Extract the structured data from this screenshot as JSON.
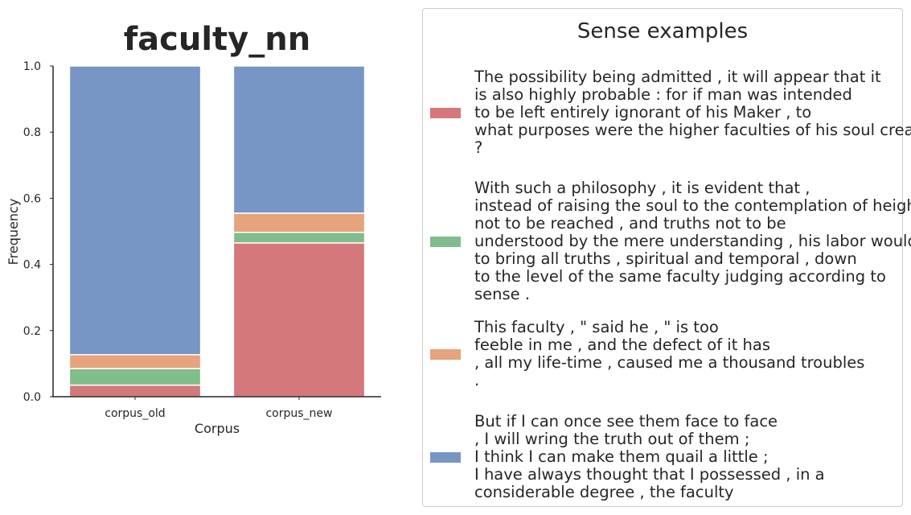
{
  "chart_data": {
    "type": "bar",
    "stacked": true,
    "title": "faculty_nn",
    "xlabel": "Corpus",
    "ylabel": "Frequency",
    "ylim": [
      0,
      1.0
    ],
    "yticks": [
      "0.0",
      "0.2",
      "0.4",
      "0.6",
      "0.8",
      "1.0"
    ],
    "grid": false,
    "legend_placement": "right",
    "categories": [
      "corpus_old",
      "corpus_new"
    ],
    "series": [
      {
        "color": "#d4787b",
        "values": [
          0.035,
          0.465
        ]
      },
      {
        "color": "#80bd8b",
        "values": [
          0.05,
          0.032
        ]
      },
      {
        "color": "#e6a37c",
        "values": [
          0.042,
          0.058
        ]
      },
      {
        "color": "#7896c5",
        "values": [
          0.873,
          0.445
        ]
      }
    ]
  },
  "legend": {
    "title": "Sense examples",
    "entries": [
      {
        "color": "#d4787b",
        "text": "The possibility being admitted , it will appear that it\nis also highly probable : for if man was intended\nto be left entirely ignorant of his Maker , to\nwhat purposes were the higher faculties of his soul created\n?"
      },
      {
        "color": "#80bd8b",
        "text": "With such a philosophy , it is evident that ,\ninstead of raising the soul to the contemplation of heights\nnot to be reached , and truths not to be\nunderstood by the mere understanding , his labor would be\nto bring all truths , spiritual and temporal , down\nto the level of the same faculty judging according to\nsense ."
      },
      {
        "color": "#e6a37c",
        "text": "This faculty , \" said he , \" is too\nfeeble in me , and the defect of it has\n, all my life-time , caused me a thousand troubles\n."
      },
      {
        "color": "#7896c5",
        "text": "But if I can once see them face to face\n, I will wring the truth out of them ;\nI think I can make them quail a little ;\nI have always thought that I possessed , in a\nconsiderable degree , the faculty"
      }
    ]
  }
}
